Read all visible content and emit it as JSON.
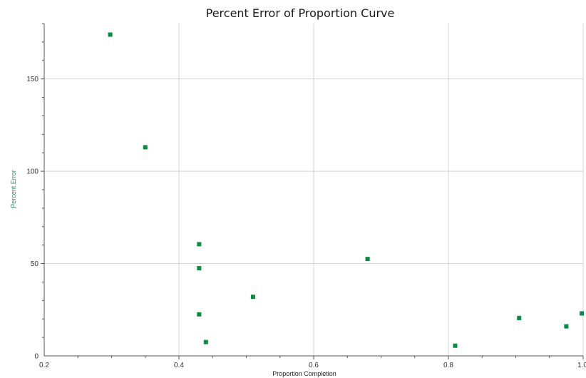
{
  "chart_data": {
    "type": "scatter",
    "title": "Percent Error of Proportion Curve",
    "xlabel": "Proportion Completion",
    "ylabel": "Percent Error",
    "xlim": [
      0.2,
      1.0
    ],
    "ylim": [
      0,
      180
    ],
    "x_ticks": [
      0.2,
      0.4,
      0.6,
      0.8,
      1.0
    ],
    "x_tick_labels": [
      "0.2",
      "0.4",
      "0.6",
      "0.8",
      "1.0"
    ],
    "y_ticks": [
      0,
      50,
      100,
      150
    ],
    "y_tick_labels": [
      "0",
      "50",
      "100",
      "150"
    ],
    "grid": true,
    "colors": {
      "marker": "#0a8a45",
      "ylabel": "#2e8b57",
      "grid": "#d4d4d4",
      "axis": "#555555"
    },
    "series": [
      {
        "x": [
          0.298,
          0.35,
          0.43,
          0.43,
          0.43,
          0.44,
          0.51,
          0.68,
          0.81,
          0.905,
          0.975,
          1.0
        ],
        "y": [
          174,
          113,
          60.5,
          47.5,
          22.5,
          7.5,
          32,
          52.5,
          5.5,
          20.5,
          16,
          23
        ]
      }
    ]
  }
}
